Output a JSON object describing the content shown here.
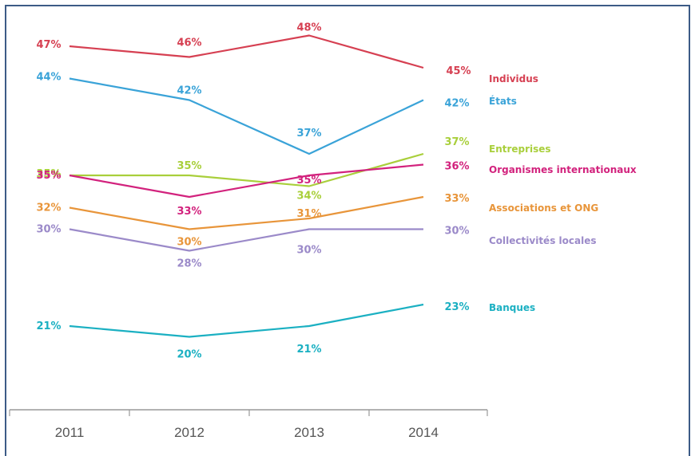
{
  "chart_data": {
    "type": "line",
    "categories": [
      "2011",
      "2012",
      "2013",
      "2014"
    ],
    "series": [
      {
        "name": "Individus",
        "values": [
          47,
          46,
          48,
          45
        ],
        "color": "#d64052"
      },
      {
        "name": "États",
        "values": [
          44,
          42,
          37,
          42
        ],
        "color": "#3aa3d8"
      },
      {
        "name": "Entreprises",
        "values": [
          35,
          35,
          34,
          37
        ],
        "color": "#a9cf3b"
      },
      {
        "name": "Organismes internationaux",
        "values": [
          35,
          33,
          35,
          36
        ],
        "color": "#d2227d"
      },
      {
        "name": "Associations et ONG",
        "values": [
          32,
          30,
          31,
          33
        ],
        "color": "#e8953a"
      },
      {
        "name": "Collectivités locales",
        "values": [
          30,
          28,
          30,
          30
        ],
        "color": "#9b8ac9"
      },
      {
        "name": "Banques",
        "values": [
          21,
          20,
          21,
          23
        ],
        "color": "#1bb0c2"
      }
    ],
    "value_labels": [
      [
        "47%",
        "46%",
        "48%",
        "45%"
      ],
      [
        "44%",
        "42%",
        "37%",
        "42%"
      ],
      [
        "35%",
        "35%",
        "34%",
        "37%"
      ],
      [
        "35%",
        "33%",
        "35%",
        "36%"
      ],
      [
        "32%",
        "30%",
        "31%",
        "33%"
      ],
      [
        "30%",
        "28%",
        "30%",
        "30%"
      ],
      [
        "21%",
        "20%",
        "21%",
        "23%"
      ]
    ],
    "legend_position": "right",
    "grid": false
  }
}
